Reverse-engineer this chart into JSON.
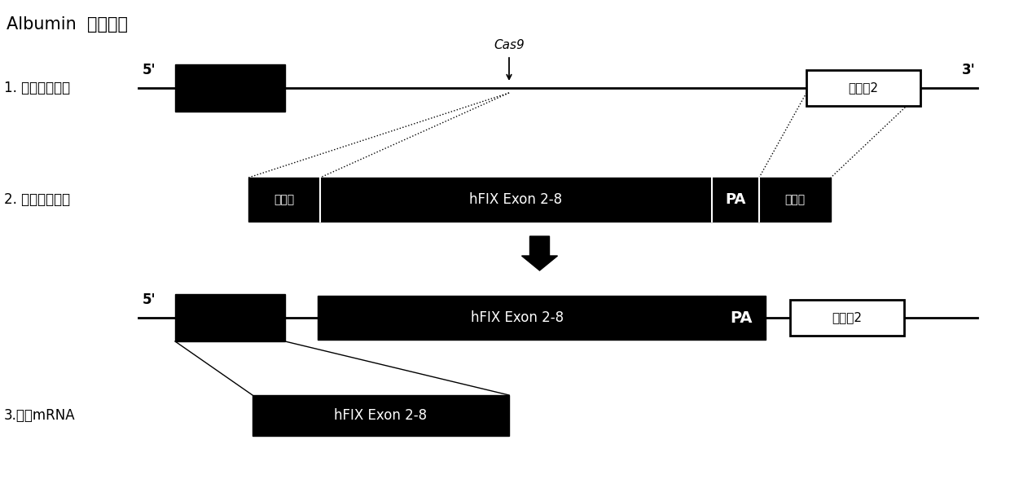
{
  "bg_color": "#ffffff",
  "title_text": "Albumin  基因位点",
  "label1": "1. 基因靶向编辑",
  "label2": "2. 基因定点敲入",
  "label3": "3.信使mRNA",
  "cas9_label": "Cas9",
  "five_prime": "5'",
  "three_prime": "3'",
  "exon2_label": "外显子2",
  "hfix_label": "hFIX Exon 2-8",
  "pa_label": "PA",
  "tongyuan_label": "同源臂",
  "font_size_title": 15,
  "font_size_labels": 12,
  "font_size_body": 11
}
